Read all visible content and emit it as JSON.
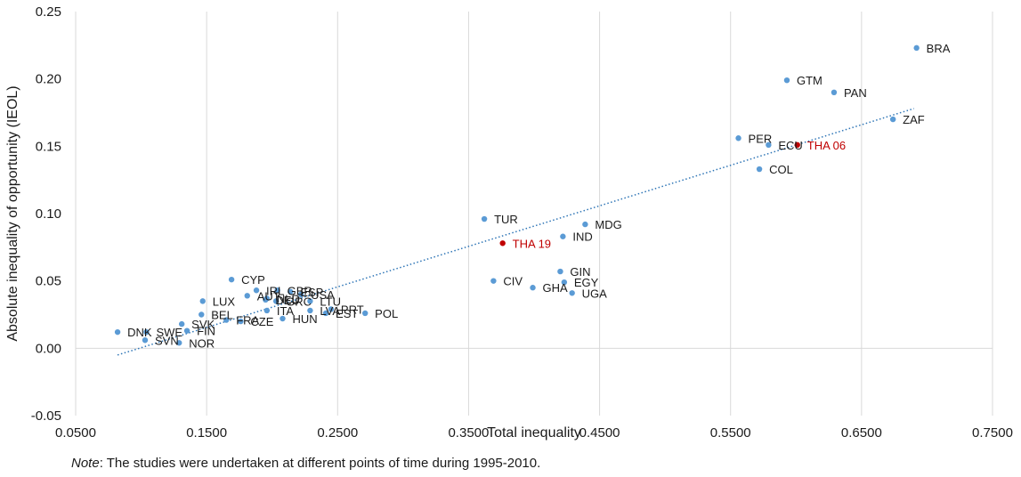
{
  "chart_data": {
    "type": "scatter",
    "xlabel": "Total inequality",
    "ylabel": "Absolute inequality of opportunity (IEOL)",
    "xlim": [
      0.05,
      0.75
    ],
    "ylim": [
      -0.05,
      0.25
    ],
    "x_ticks": [
      "0.0500",
      "0.1500",
      "0.2500",
      "0.3500",
      "0.4500",
      "0.5500",
      "0.6500",
      "0.7500"
    ],
    "y_ticks": [
      "-0.05",
      "0.00",
      "0.05",
      "0.10",
      "0.15",
      "0.20",
      "0.25"
    ],
    "grid": "vertical",
    "marker_color": "#5b9bd5",
    "highlight_color": "#c00000",
    "trendline": {
      "style": "dotted",
      "color": "#2e75b6",
      "x": [
        0.082,
        0.69
      ],
      "y": [
        -0.005,
        0.178
      ]
    },
    "points": [
      {
        "label": "BRA",
        "x": 0.692,
        "y": 0.223
      },
      {
        "label": "GTM",
        "x": 0.593,
        "y": 0.199
      },
      {
        "label": "PAN",
        "x": 0.629,
        "y": 0.19
      },
      {
        "label": "ZAF",
        "x": 0.674,
        "y": 0.17
      },
      {
        "label": "PER",
        "x": 0.556,
        "y": 0.156
      },
      {
        "label": "ECU",
        "x": 0.579,
        "y": 0.151
      },
      {
        "label": "THA 06",
        "x": 0.601,
        "y": 0.151,
        "highlight": true
      },
      {
        "label": "COL",
        "x": 0.572,
        "y": 0.133
      },
      {
        "label": "TUR",
        "x": 0.362,
        "y": 0.096
      },
      {
        "label": "MDG",
        "x": 0.439,
        "y": 0.092
      },
      {
        "label": "IND",
        "x": 0.422,
        "y": 0.083
      },
      {
        "label": "THA 19",
        "x": 0.376,
        "y": 0.078,
        "highlight": true
      },
      {
        "label": "GIN",
        "x": 0.42,
        "y": 0.057
      },
      {
        "label": "CIV",
        "x": 0.369,
        "y": 0.05
      },
      {
        "label": "EGY",
        "x": 0.423,
        "y": 0.049
      },
      {
        "label": "GHA",
        "x": 0.399,
        "y": 0.045
      },
      {
        "label": "UGA",
        "x": 0.429,
        "y": 0.041
      },
      {
        "label": "CYP",
        "x": 0.169,
        "y": 0.051
      },
      {
        "label": "IRL",
        "x": 0.188,
        "y": 0.043
      },
      {
        "label": "GBR",
        "x": 0.204,
        "y": 0.043
      },
      {
        "label": "ESP",
        "x": 0.214,
        "y": 0.042
      },
      {
        "label": "USA",
        "x": 0.222,
        "y": 0.04
      },
      {
        "label": "AUT",
        "x": 0.181,
        "y": 0.039
      },
      {
        "label": "NLD",
        "x": 0.196,
        "y": 0.037
      },
      {
        "label": "DEU",
        "x": 0.195,
        "y": 0.036
      },
      {
        "label": "GRC",
        "x": 0.203,
        "y": 0.035
      },
      {
        "label": "LTU",
        "x": 0.229,
        "y": 0.035
      },
      {
        "label": "LUX",
        "x": 0.147,
        "y": 0.035
      },
      {
        "label": "PRT",
        "x": 0.245,
        "y": 0.029
      },
      {
        "label": "ITA",
        "x": 0.196,
        "y": 0.028
      },
      {
        "label": "LVA",
        "x": 0.229,
        "y": 0.028
      },
      {
        "label": "EST",
        "x": 0.241,
        "y": 0.026
      },
      {
        "label": "POL",
        "x": 0.271,
        "y": 0.026
      },
      {
        "label": "BEL",
        "x": 0.146,
        "y": 0.025
      },
      {
        "label": "HUN",
        "x": 0.208,
        "y": 0.022
      },
      {
        "label": "FRA",
        "x": 0.165,
        "y": 0.021
      },
      {
        "label": "CZE",
        "x": 0.176,
        "y": 0.02
      },
      {
        "label": "SVK",
        "x": 0.131,
        "y": 0.018
      },
      {
        "label": "FIN",
        "x": 0.135,
        "y": 0.013
      },
      {
        "label": "DNK",
        "x": 0.082,
        "y": 0.012
      },
      {
        "label": "SWE",
        "x": 0.104,
        "y": 0.012
      },
      {
        "label": "SVN",
        "x": 0.103,
        "y": 0.006
      },
      {
        "label": "NOR",
        "x": 0.129,
        "y": 0.004
      }
    ]
  },
  "note": {
    "prefix": "Note",
    "text": ": The studies were undertaken at different points of time during 1995-2010."
  }
}
